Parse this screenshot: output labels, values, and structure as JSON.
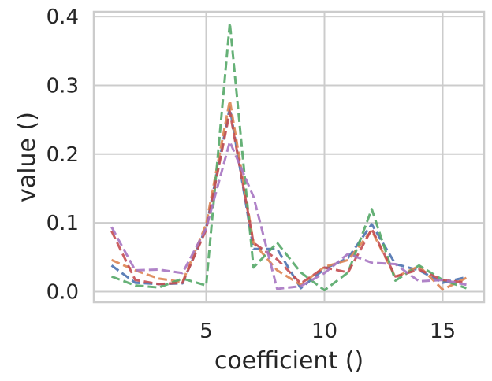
{
  "chart_data": {
    "type": "line",
    "xlabel": "coefficient ()",
    "ylabel": "value ()",
    "xlim": [
      0.25,
      16.75
    ],
    "ylim": [
      -0.0155,
      0.407
    ],
    "xticks": [
      5,
      10,
      15
    ],
    "xtick_labels": [
      "5",
      "10",
      "15"
    ],
    "yticks": [
      0.0,
      0.1,
      0.2,
      0.3,
      0.4
    ],
    "ytick_labels": [
      "0.0",
      "0.1",
      "0.2",
      "0.3",
      "0.4"
    ],
    "grid": true,
    "legend": "none",
    "line_style": "dashed",
    "x": [
      1,
      2,
      3,
      4,
      5,
      6,
      7,
      8,
      9,
      10,
      11,
      12,
      13,
      14,
      15,
      16
    ],
    "series": [
      {
        "color": "#4c72b0",
        "values": [
          0.038,
          0.013,
          0.011,
          0.012,
          0.093,
          0.268,
          0.062,
          0.062,
          0.005,
          0.033,
          0.049,
          0.098,
          0.04,
          0.031,
          0.013,
          0.021
        ]
      },
      {
        "color": "#dd8452",
        "values": [
          0.046,
          0.031,
          0.019,
          0.014,
          0.098,
          0.278,
          0.071,
          0.031,
          0.01,
          0.036,
          0.046,
          0.089,
          0.021,
          0.037,
          0.003,
          0.02
        ]
      },
      {
        "color": "#55a868",
        "values": [
          0.022,
          0.009,
          0.006,
          0.019,
          0.009,
          0.391,
          0.035,
          0.071,
          0.028,
          0.002,
          0.028,
          0.12,
          0.016,
          0.038,
          0.017,
          0.005
        ]
      },
      {
        "color": "#c44e52",
        "values": [
          0.088,
          0.017,
          0.011,
          0.013,
          0.09,
          0.262,
          0.071,
          0.047,
          0.012,
          0.035,
          0.028,
          0.091,
          0.022,
          0.032,
          0.017,
          0.013
        ]
      },
      {
        "color": "#a776c2",
        "values": [
          0.094,
          0.031,
          0.032,
          0.027,
          0.092,
          0.218,
          0.138,
          0.004,
          0.008,
          0.027,
          0.055,
          0.042,
          0.04,
          0.015,
          0.017,
          0.01
        ]
      }
    ]
  }
}
